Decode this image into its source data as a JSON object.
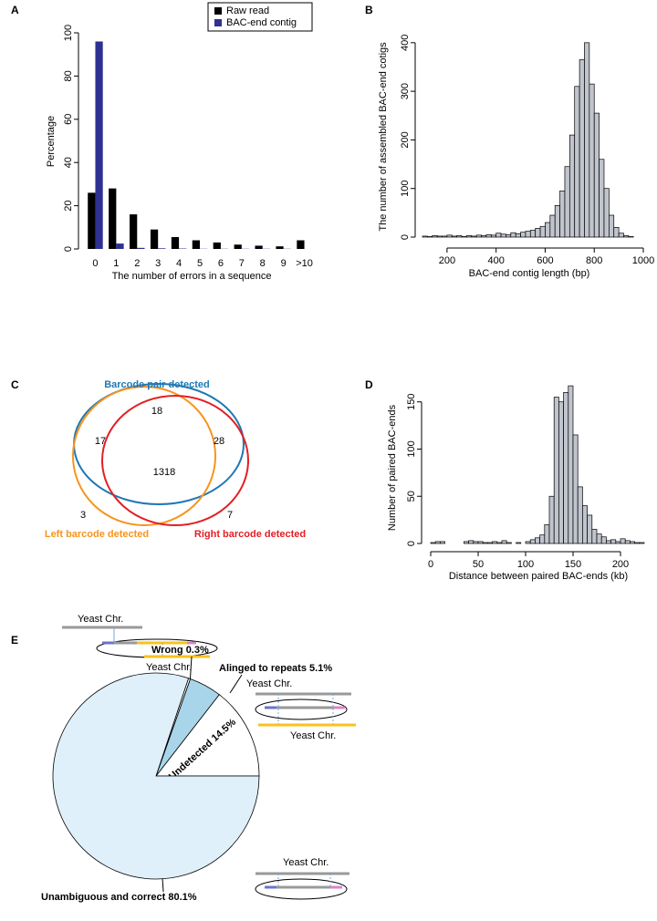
{
  "panel_labels": [
    "A",
    "B",
    "C",
    "D",
    "E"
  ],
  "chart_data": [
    {
      "type": "bar",
      "x_label": "The number of errors in a sequence",
      "y_label": "Percentage",
      "categories": [
        "0",
        "1",
        "2",
        "3",
        "4",
        "5",
        "6",
        "7",
        "8",
        "9",
        ">10"
      ],
      "series": [
        {
          "name": "Raw read",
          "color": "#000000",
          "values": [
            26,
            28,
            16,
            9,
            5.5,
            4,
            3,
            2,
            1.5,
            1.2,
            4
          ]
        },
        {
          "name": "BAC-end contig",
          "color": "#2e3192",
          "values": [
            96,
            2.5,
            0.5,
            0.3,
            0.2,
            0.1,
            0.1,
            0.1,
            0.1,
            0.1,
            0
          ]
        }
      ],
      "ylim": [
        0,
        100
      ],
      "yticks": [
        0,
        20,
        40,
        60,
        80,
        100
      ],
      "legend": "top-right"
    },
    {
      "type": "histogram",
      "x_label": "BAC-end contig length (bp)",
      "y_label": "The number of assembled BAC-end cotigs",
      "color": "#c0c4cc",
      "bins": [
        100,
        120,
        140,
        160,
        180,
        200,
        220,
        240,
        260,
        280,
        300,
        320,
        340,
        360,
        380,
        400,
        420,
        440,
        460,
        480,
        500,
        520,
        540,
        560,
        580,
        600,
        620,
        640,
        660,
        680,
        700,
        720,
        740,
        760,
        780,
        800,
        820,
        840,
        860,
        880,
        900,
        920,
        940,
        960,
        980
      ],
      "values": [
        2,
        1,
        3,
        2,
        2,
        4,
        2,
        3,
        1,
        3,
        2,
        4,
        3,
        5,
        4,
        8,
        6,
        5,
        9,
        7,
        10,
        12,
        14,
        18,
        22,
        30,
        45,
        65,
        95,
        145,
        210,
        310,
        365,
        400,
        315,
        255,
        160,
        100,
        45,
        20,
        8,
        3,
        1,
        0
      ],
      "xlim": [
        100,
        1000
      ],
      "xticks": [
        200,
        400,
        600,
        800,
        1000
      ],
      "ylim": [
        0,
        410
      ],
      "yticks": [
        0,
        100,
        200,
        300,
        400
      ]
    },
    {
      "type": "histogram",
      "x_label": "Distance between paired BAC-ends (kb)",
      "y_label": "Number of paired BAC-ends",
      "color": "#c0c4cc",
      "bins": [
        0,
        5,
        10,
        15,
        20,
        25,
        30,
        35,
        40,
        45,
        50,
        55,
        60,
        65,
        70,
        75,
        80,
        85,
        90,
        95,
        100,
        105,
        110,
        115,
        120,
        125,
        130,
        135,
        140,
        145,
        150,
        155,
        160,
        165,
        170,
        175,
        180,
        185,
        190,
        195,
        200,
        205,
        210,
        215,
        220,
        225
      ],
      "values": [
        1,
        2,
        2,
        0,
        0,
        0,
        0,
        2,
        3,
        2,
        2,
        1,
        1,
        2,
        1,
        3,
        1,
        0,
        1,
        0,
        2,
        4,
        6,
        9,
        20,
        50,
        155,
        150,
        160,
        167,
        115,
        60,
        40,
        30,
        15,
        10,
        7,
        3,
        4,
        2,
        5,
        3,
        2,
        1,
        1
      ],
      "xlim": [
        0,
        225
      ],
      "xticks": [
        0,
        50,
        100,
        150,
        200
      ],
      "ylim": [
        0,
        170
      ],
      "yticks": [
        0,
        50,
        100,
        150
      ]
    },
    {
      "type": "pie",
      "categories": [
        "Undetected",
        "Alinged to repeats",
        "Wrong",
        "Unambiguous and correct"
      ],
      "values": [
        14.5,
        5.1,
        0.3,
        80.1
      ],
      "value_labels": [
        "14.5%",
        "5.1%",
        "0.3%",
        "80.1%"
      ],
      "colors": [
        "#ffffff",
        "#a8d5ea",
        "#ffffff",
        "#dff0fa"
      ]
    }
  ],
  "venn": {
    "sets": [
      "Barcode pair detected",
      "Left barcode detected",
      "Right barcode detected"
    ],
    "counts": [
      "18",
      "17",
      "28",
      "1318",
      "3",
      "7"
    ]
  },
  "diagram_labels": [
    "Yeast Chr.",
    "Yeast Chr.",
    "Yeast Chr.",
    "Yeast Chr.",
    "Yeast Chr."
  ]
}
